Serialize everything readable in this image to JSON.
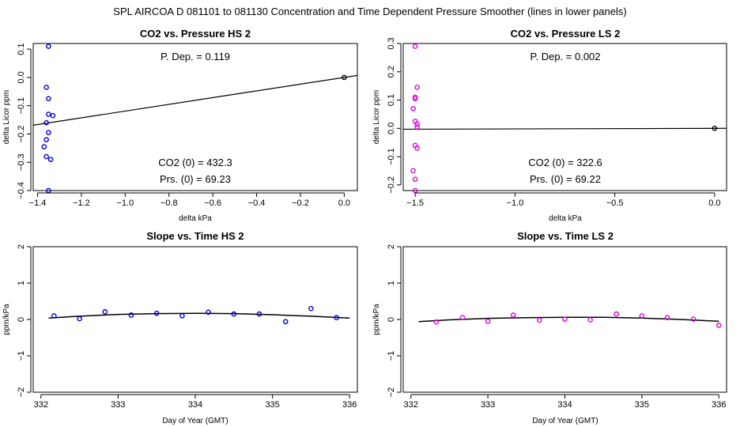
{
  "figure_title": "SPL   AIRCOA D   081101 to 081130   Concentration and Time Dependent Pressure Smoother (lines in lower panels)",
  "colors": {
    "hs": "#0000cc",
    "ls": "#dd00dd",
    "ref": "#000000",
    "line": "#000000"
  },
  "chart_data": [
    {
      "id": "hs-pressure",
      "type": "scatter",
      "title": "CO2 vs. Pressure HS 2",
      "xlabel": "delta kPa",
      "ylabel": "delta Licor ppm",
      "xlim": [
        -1.42,
        0.06
      ],
      "ylim": [
        -0.4,
        0.12
      ],
      "xticks": [
        -1.4,
        -1.2,
        -1.0,
        -0.8,
        -0.6,
        -0.4,
        -0.2,
        0.0
      ],
      "xtick_labels": [
        "−1.4",
        "−1.2",
        "−1.0",
        "−0.8",
        "−0.6",
        "−0.4",
        "−0.2",
        "0.0"
      ],
      "yticks": [
        -0.4,
        -0.3,
        -0.2,
        -0.1,
        0.0,
        0.1
      ],
      "ytick_labels": [
        "−0.4",
        "−0.3",
        "−0.2",
        "−0.1",
        "0.0",
        "0.1"
      ],
      "points": [
        [
          -1.35,
          0.11
        ],
        [
          -1.36,
          -0.035
        ],
        [
          -1.35,
          -0.075
        ],
        [
          -1.35,
          -0.13
        ],
        [
          -1.33,
          -0.135
        ],
        [
          -1.36,
          -0.16
        ],
        [
          -1.35,
          -0.195
        ],
        [
          -1.36,
          -0.22
        ],
        [
          -1.37,
          -0.245
        ],
        [
          -1.36,
          -0.28
        ],
        [
          -1.34,
          -0.29
        ],
        [
          -1.35,
          -0.4
        ]
      ],
      "ref_point": [
        0.0,
        0.0
      ],
      "fit_line": {
        "slope": 0.119,
        "x": [
          -1.42,
          0.06
        ]
      },
      "annotations": {
        "pdep": "P. Dep. =  0.119",
        "co2": "CO2 (0) =  432.3",
        "prs": "Prs. (0) =  69.23"
      }
    },
    {
      "id": "ls-pressure",
      "type": "scatter",
      "title": "CO2 vs. Pressure LS 2",
      "xlabel": "delta kPa",
      "ylabel": "delta Licor ppm",
      "xlim": [
        -1.56,
        0.06
      ],
      "ylim": [
        -0.22,
        0.3
      ],
      "xticks": [
        -1.5,
        -1.0,
        -0.5,
        0.0
      ],
      "xtick_labels": [
        "−1.5",
        "−1.0",
        "−0.5",
        "0.0"
      ],
      "yticks": [
        -0.2,
        -0.1,
        0.0,
        0.1,
        0.2,
        0.3
      ],
      "ytick_labels": [
        "−0.2",
        "−0.1",
        "0.0",
        "0.1",
        "0.2",
        "0.3"
      ],
      "points": [
        [
          -1.5,
          0.29
        ],
        [
          -1.49,
          0.145
        ],
        [
          -1.5,
          0.11
        ],
        [
          -1.5,
          0.105
        ],
        [
          -1.51,
          0.07
        ],
        [
          -1.5,
          0.025
        ],
        [
          -1.49,
          0.015
        ],
        [
          -1.49,
          0.005
        ],
        [
          -1.5,
          -0.06
        ],
        [
          -1.49,
          -0.07
        ],
        [
          -1.51,
          -0.15
        ],
        [
          -1.5,
          -0.18
        ],
        [
          -1.5,
          -0.22
        ]
      ],
      "ref_point": [
        0.0,
        0.0
      ],
      "fit_line": {
        "slope": 0.002,
        "x": [
          -1.56,
          0.06
        ]
      },
      "annotations": {
        "pdep": "P. Dep. =  0.002",
        "co2": "CO2 (0) =  322.6",
        "prs": "Prs. (0) =  69.22"
      }
    },
    {
      "id": "hs-time",
      "type": "scatter",
      "title": "Slope vs. Time HS 2",
      "xlabel": "Day of Year (GMT)",
      "ylabel": "ppm/kPa",
      "xlim": [
        331.9,
        336.1
      ],
      "ylim": [
        -2.0,
        2.0
      ],
      "xticks": [
        332,
        333,
        334,
        335,
        336
      ],
      "xtick_labels": [
        "332",
        "333",
        "334",
        "335",
        "336"
      ],
      "yticks": [
        -2,
        -1,
        0,
        1,
        2
      ],
      "ytick_labels": [
        "−2",
        "−1",
        "0",
        "1",
        "2"
      ],
      "points": [
        [
          332.17,
          0.1
        ],
        [
          332.5,
          0.02
        ],
        [
          332.83,
          0.21
        ],
        [
          333.17,
          0.12
        ],
        [
          333.5,
          0.17
        ],
        [
          333.83,
          0.1
        ],
        [
          334.17,
          0.2
        ],
        [
          334.5,
          0.15
        ],
        [
          334.83,
          0.15
        ],
        [
          335.17,
          -0.06
        ],
        [
          335.5,
          0.3
        ],
        [
          335.83,
          0.05
        ]
      ],
      "smoother": {
        "x": [
          332.1,
          332.5,
          333.0,
          333.5,
          334.0,
          334.5,
          335.0,
          335.5,
          336.0
        ],
        "y": [
          0.04,
          0.09,
          0.14,
          0.16,
          0.17,
          0.16,
          0.13,
          0.09,
          0.04
        ]
      }
    },
    {
      "id": "ls-time",
      "type": "scatter",
      "title": "Slope vs. Time LS 2",
      "xlabel": "Day of Year (GMT)",
      "ylabel": "ppm/kPa",
      "xlim": [
        331.9,
        336.1
      ],
      "ylim": [
        -2.0,
        2.0
      ],
      "xticks": [
        332,
        333,
        334,
        335,
        336
      ],
      "xtick_labels": [
        "332",
        "333",
        "334",
        "335",
        "336"
      ],
      "yticks": [
        -2,
        -1,
        0,
        1,
        2
      ],
      "ytick_labels": [
        "−2",
        "−1",
        "0",
        "1",
        "2"
      ],
      "points": [
        [
          332.33,
          -0.07
        ],
        [
          332.67,
          0.05
        ],
        [
          333.0,
          -0.05
        ],
        [
          333.33,
          0.12
        ],
        [
          333.67,
          -0.02
        ],
        [
          334.0,
          0.01
        ],
        [
          334.33,
          -0.01
        ],
        [
          334.67,
          0.15
        ],
        [
          335.0,
          0.1
        ],
        [
          335.33,
          0.05
        ],
        [
          335.67,
          0.01
        ],
        [
          336.0,
          -0.16
        ]
      ],
      "smoother": {
        "x": [
          332.1,
          332.5,
          333.0,
          333.5,
          334.0,
          334.5,
          335.0,
          335.5,
          336.0
        ],
        "y": [
          -0.06,
          -0.01,
          0.03,
          0.05,
          0.06,
          0.06,
          0.04,
          0.0,
          -0.05
        ]
      }
    }
  ]
}
